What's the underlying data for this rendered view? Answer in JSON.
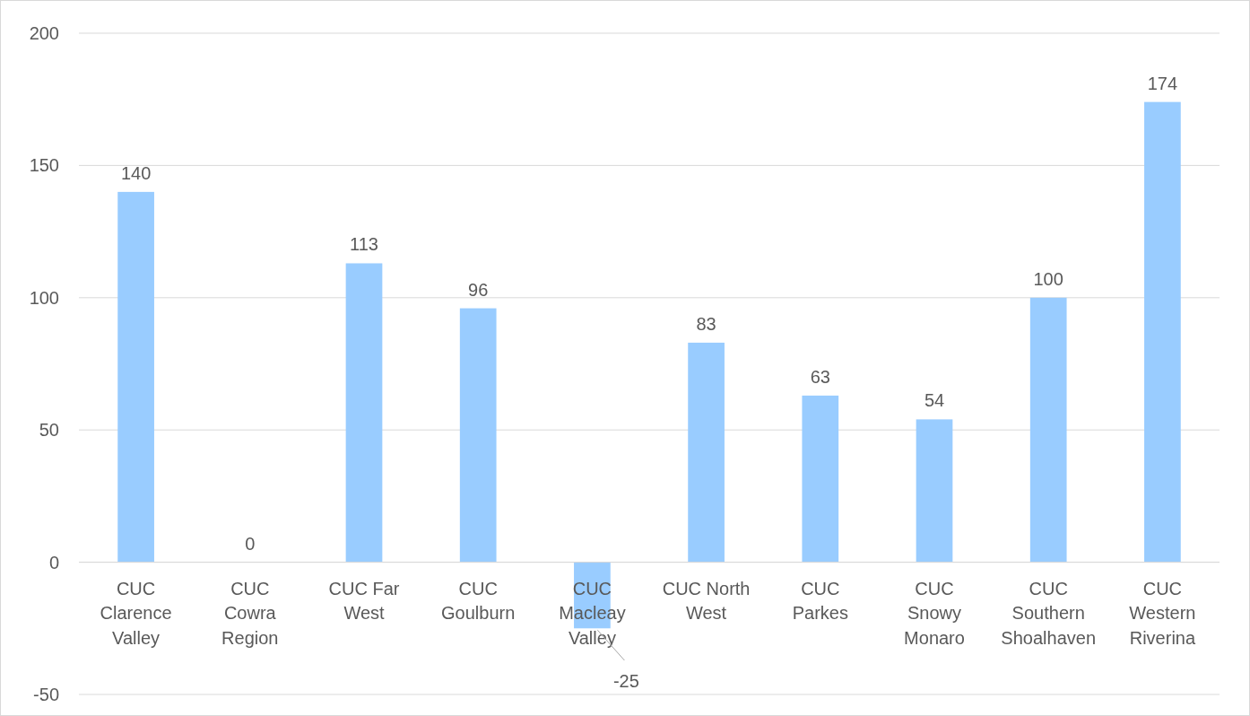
{
  "chart_data": {
    "type": "bar",
    "categories": [
      "CUC\nClarence\nValley",
      "CUC\nCowra\nRegion",
      "CUC Far\nWest",
      "CUC\nGoulburn",
      "CUC\nMacleay\nValley",
      "CUC North\nWest",
      "CUC\nParkes",
      "CUC\nSnowy\nMonaro",
      "CUC\nSouthern\nShoalhaven",
      "CUC\nWestern\nRiverina"
    ],
    "values": [
      140,
      0,
      113,
      96,
      -25,
      83,
      63,
      54,
      100,
      174
    ],
    "color": "#99ccff",
    "ylim": [
      -50,
      200
    ],
    "yticks": [
      -50,
      0,
      50,
      100,
      150,
      200
    ],
    "grid": "y",
    "data_labels": true
  }
}
